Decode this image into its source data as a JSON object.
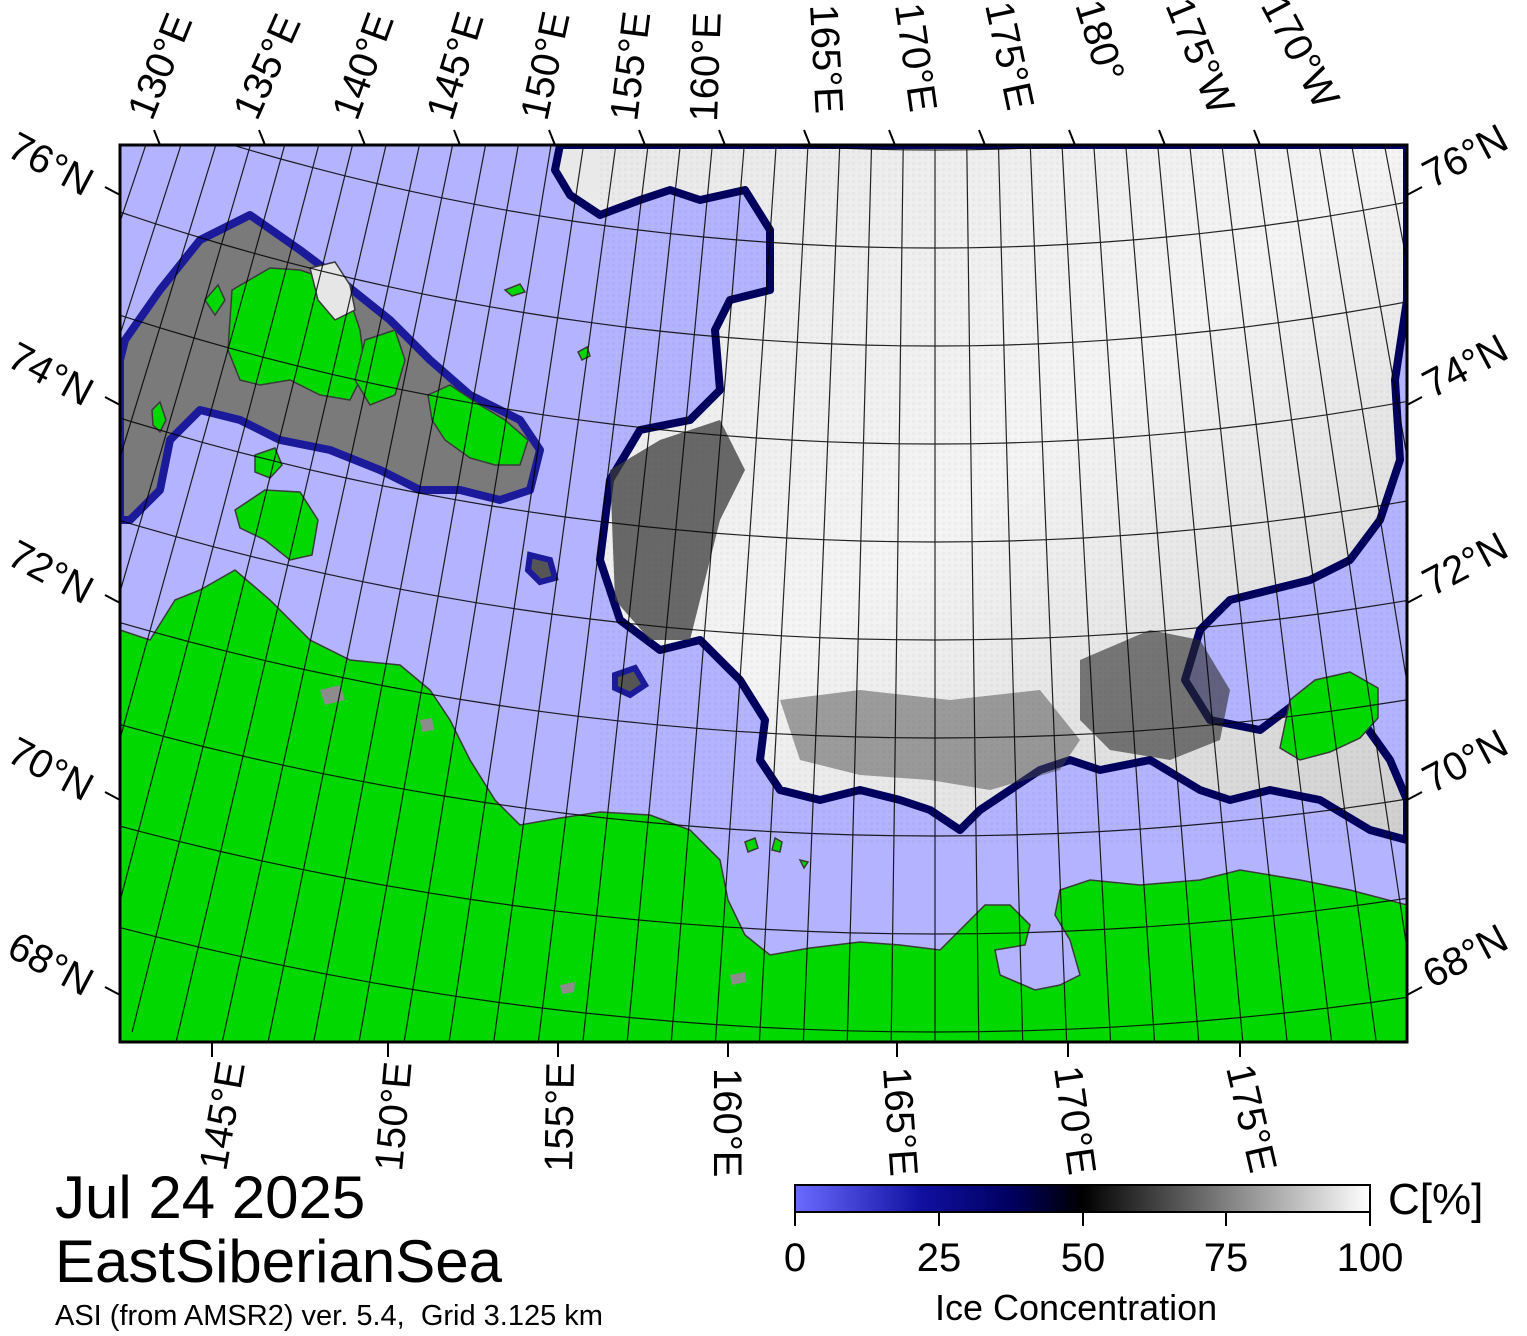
{
  "date": "Jul 24 2025",
  "region": "EastSiberianSea",
  "source": "ASI (from AMSR2) ver. 5.4,  Grid 3.125 km",
  "colors": {
    "open_water": "#b3b3ff",
    "land": "#00d800",
    "land_nodata": "#8c8c8c",
    "ice_low": "#6b6bff",
    "ice_mid": "#00005e",
    "ice_50": "#000000",
    "ice_high": "#ffffff"
  },
  "top_lon_labels": [
    "130°E",
    "135°E",
    "140°E",
    "145°E",
    "150°E",
    "155°E",
    "160°E",
    "165°E",
    "170°E",
    "175°E",
    "180°",
    "175°W",
    "170°W"
  ],
  "bottom_lon_labels": [
    "145°E",
    "150°E",
    "155°E",
    "160°E",
    "165°E",
    "170°E",
    "175°E"
  ],
  "left_lat_labels": [
    "76°N",
    "74°N",
    "72°N",
    "70°N",
    "68°N"
  ],
  "right_lat_labels": [
    "76°N",
    "74°N",
    "72°N",
    "70°N",
    "68°N"
  ],
  "colorbar": {
    "title": "Ice Concentration",
    "unit": "C[%]",
    "ticks": [
      "0",
      "25",
      "50",
      "75",
      "100"
    ],
    "range": [
      0,
      100
    ]
  }
}
